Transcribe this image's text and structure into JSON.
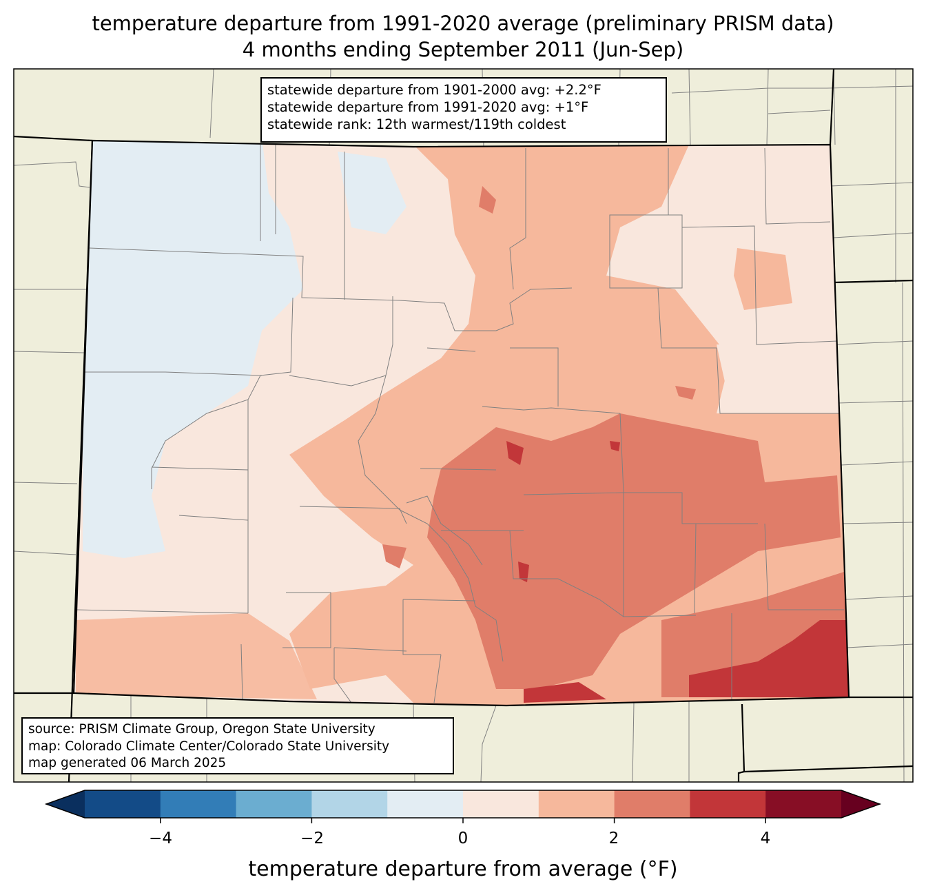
{
  "title": {
    "line1": "temperature departure from 1991-2020 average (preliminary PRISM data)",
    "line2": "4 months ending September 2011 (Jun-Sep)"
  },
  "stats": {
    "line1": "statewide departure from 1901-2000 avg: +2.2°F",
    "line2": "statewide departure from 1991-2020 avg: +1°F",
    "line3": "statewide rank: 12th warmest/119th coldest"
  },
  "source": {
    "line1": "source: PRISM Climate Group, Oregon State University",
    "line2": "map: Colorado Climate Center/Colorado State University",
    "line3": "map generated 06 March 2025"
  },
  "colorbar": {
    "label": "temperature departure from average (°F)",
    "ticks": [
      "−4",
      "−2",
      "0",
      "2",
      "4"
    ],
    "tick_values": [
      -4,
      -2,
      0,
      2,
      4
    ],
    "bins": [
      {
        "from": -5,
        "to": -4,
        "color": "#134b87"
      },
      {
        "from": -4,
        "to": -3,
        "color": "#327db7"
      },
      {
        "from": -3,
        "to": -2,
        "color": "#6badd0"
      },
      {
        "from": -2,
        "to": -1,
        "color": "#b2d5e7"
      },
      {
        "from": -1,
        "to": 0,
        "color": "#e3edf3"
      },
      {
        "from": 0,
        "to": 1,
        "color": "#f9e7dd"
      },
      {
        "from": 1,
        "to": 2,
        "color": "#f6b89c"
      },
      {
        "from": 2,
        "to": 3,
        "color": "#e07d69"
      },
      {
        "from": 3,
        "to": 4,
        "color": "#c23639"
      },
      {
        "from": 4,
        "to": 5,
        "color": "#870e25"
      }
    ],
    "under_color": "#0a2f5e",
    "over_color": "#67001f"
  },
  "colors": {
    "land_outside": "#efeedb",
    "county_lines": "#808080",
    "state_lines": "#000000"
  }
}
